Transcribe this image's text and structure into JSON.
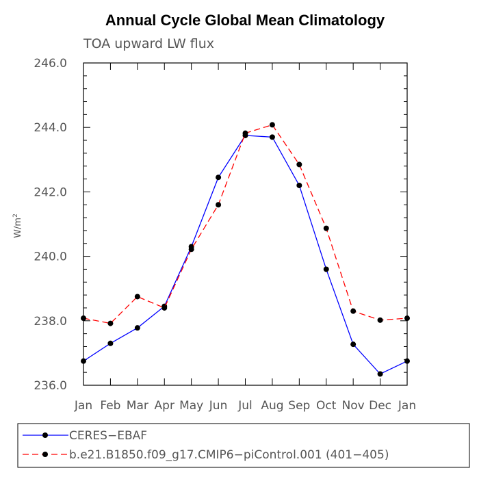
{
  "chart_data": {
    "type": "line",
    "title": "Annual Cycle Global Mean Climatology",
    "subtitle": "TOA upward LW flux",
    "ylabel": "W/m",
    "ylabel_superscript": "2",
    "xlabel": "",
    "categories": [
      "Jan",
      "Feb",
      "Mar",
      "Apr",
      "May",
      "Jun",
      "Jul",
      "Aug",
      "Sep",
      "Oct",
      "Nov",
      "Dec",
      "Jan"
    ],
    "ylim": [
      236.0,
      246.0
    ],
    "yticks": [
      236.0,
      238.0,
      240.0,
      242.0,
      244.0,
      246.0
    ],
    "ytick_labels": [
      "236.0",
      "238.0",
      "240.0",
      "242.0",
      "244.0",
      "246.0"
    ],
    "yminor_step": 0.4,
    "series": [
      {
        "name": "CERES−EBAF",
        "color": "#0000ff",
        "dash": "solid",
        "marker": "filled-circle",
        "values": [
          236.75,
          237.3,
          237.78,
          238.45,
          240.3,
          242.45,
          243.75,
          243.7,
          242.2,
          239.6,
          237.27,
          236.35,
          236.75
        ]
      },
      {
        "name": "b.e21.B1850.f09_g17.CMIP6−piControl.001 (401−405)",
        "color": "#ff0000",
        "dash": "dashed",
        "marker": "filled-circle",
        "values": [
          238.08,
          237.92,
          238.75,
          238.4,
          240.22,
          241.6,
          243.82,
          244.08,
          242.85,
          240.87,
          238.3,
          238.02,
          238.08
        ]
      }
    ],
    "legend": {
      "placement": "bottom"
    }
  }
}
